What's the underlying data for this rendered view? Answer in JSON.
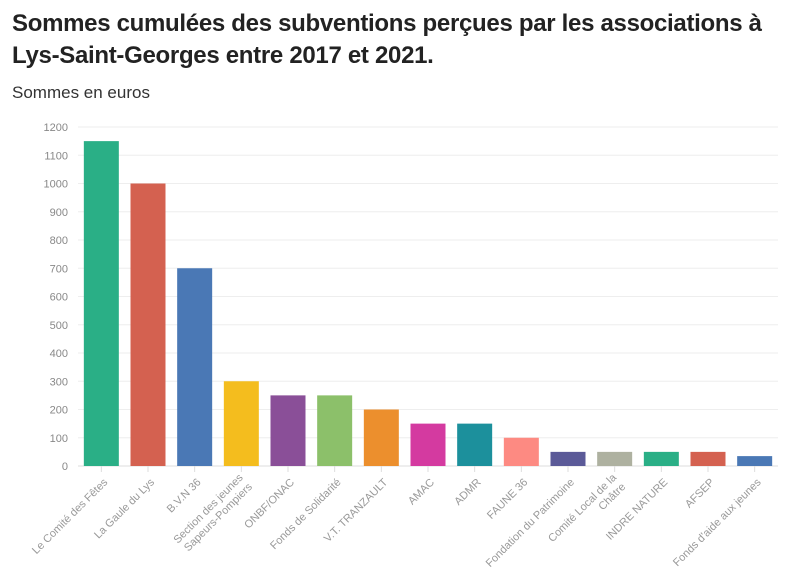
{
  "chart_data": {
    "type": "bar",
    "title": "Sommes cumulées des subventions perçues par les associations à Lys-Saint-Georges entre 2017 et 2021.",
    "subtitle": "Sommes en euros",
    "xlabel": "",
    "ylabel": "",
    "ylim": [
      0,
      1200
    ],
    "yticks": [
      0,
      100,
      200,
      300,
      400,
      500,
      600,
      700,
      800,
      900,
      1000,
      1100,
      1200
    ],
    "grid": true,
    "categories": [
      [
        "Le Comité des Fêtes"
      ],
      [
        "La Gaule du Lys"
      ],
      [
        "B.V.N 36"
      ],
      [
        "Section des jeunes",
        "Sapeurs-Pompiers"
      ],
      [
        "ONBF/ONAC"
      ],
      [
        "Fonds de Solidarité"
      ],
      [
        "V.T. TRANZAULT"
      ],
      [
        "AMAC"
      ],
      [
        "ADMR"
      ],
      [
        "FAUNE 36"
      ],
      [
        "Fondation du Patrimoine"
      ],
      [
        "Comité Local de la",
        "Châtre"
      ],
      [
        "INDRE NATURE"
      ],
      [
        "AFSEP"
      ],
      [
        "Fonds d'aide aux jeunes"
      ]
    ],
    "values": [
      1150,
      1000,
      700,
      300,
      250,
      250,
      200,
      150,
      150,
      100,
      50,
      50,
      50,
      50,
      35
    ],
    "colors": [
      "#2aaf86",
      "#d46150",
      "#4a78b5",
      "#f4bd1e",
      "#8a4f98",
      "#8cc06a",
      "#ec8f2d",
      "#d43aa0",
      "#1c909c",
      "#fd8a82",
      "#5b5a98",
      "#aeb1a0",
      "#2aaf86",
      "#d46150",
      "#4a78b5"
    ]
  }
}
